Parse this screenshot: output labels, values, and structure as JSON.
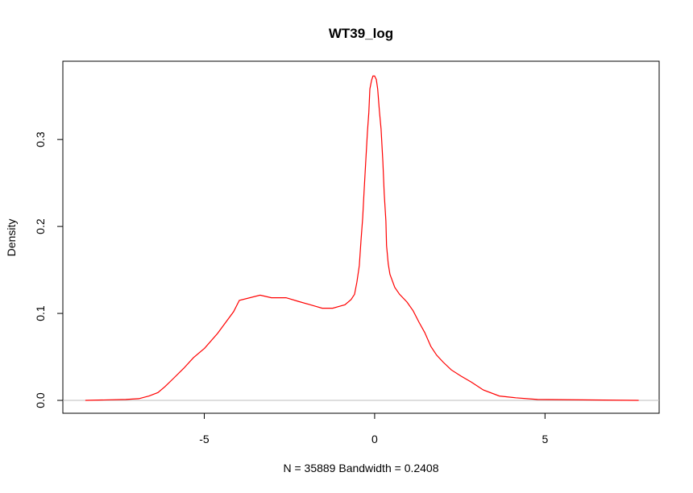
{
  "chart_data": {
    "type": "line",
    "title": "WT39_log",
    "xlabel": "N = 35889   Bandwidth = 0.2408",
    "ylabel": "Density",
    "xlim": [
      -9.15,
      8.35
    ],
    "ylim": [
      -0.0148,
      0.39
    ],
    "xticks": [
      -5,
      0,
      5
    ],
    "xtick_labels": [
      "-5",
      "0",
      "5"
    ],
    "yticks": [
      0.0,
      0.1,
      0.2,
      0.3
    ],
    "ytick_labels": [
      "0.0",
      "0.1",
      "0.2",
      "0.3"
    ],
    "grid": false,
    "baseline": {
      "y": 0,
      "color": "#bebebe"
    },
    "series": [
      {
        "name": "density",
        "color": "#ff0000",
        "x": [
          -8.49,
          -7.3,
          -6.92,
          -6.62,
          -6.36,
          -6.15,
          -5.91,
          -5.6,
          -5.32,
          -4.99,
          -4.61,
          -4.14,
          -3.97,
          -3.36,
          -3.03,
          -2.6,
          -2.25,
          -1.89,
          -1.54,
          -1.23,
          -0.87,
          -0.69,
          -0.59,
          -0.52,
          -0.45,
          -0.4,
          -0.35,
          -0.31,
          -0.26,
          -0.21,
          -0.17,
          -0.14,
          -0.09,
          -0.05,
          0.0,
          0.05,
          0.09,
          0.14,
          0.19,
          0.24,
          0.28,
          0.33,
          0.35,
          0.4,
          0.45,
          0.59,
          0.73,
          0.95,
          1.13,
          1.3,
          1.47,
          1.65,
          1.82,
          2.01,
          2.25,
          2.53,
          2.84,
          3.19,
          3.66,
          4.14,
          4.78,
          7.75
        ],
        "y": [
          0,
          0.001,
          0.002,
          0.005,
          0.009,
          0.016,
          0.025,
          0.037,
          0.049,
          0.06,
          0.077,
          0.102,
          0.115,
          0.121,
          0.118,
          0.118,
          0.114,
          0.11,
          0.106,
          0.106,
          0.11,
          0.116,
          0.122,
          0.136,
          0.155,
          0.184,
          0.21,
          0.24,
          0.275,
          0.309,
          0.331,
          0.358,
          0.368,
          0.373,
          0.373,
          0.369,
          0.358,
          0.333,
          0.312,
          0.275,
          0.238,
          0.206,
          0.178,
          0.157,
          0.145,
          0.13,
          0.122,
          0.113,
          0.103,
          0.09,
          0.078,
          0.062,
          0.052,
          0.044,
          0.035,
          0.028,
          0.021,
          0.012,
          0.005,
          0.003,
          0.001,
          0
        ]
      }
    ]
  }
}
